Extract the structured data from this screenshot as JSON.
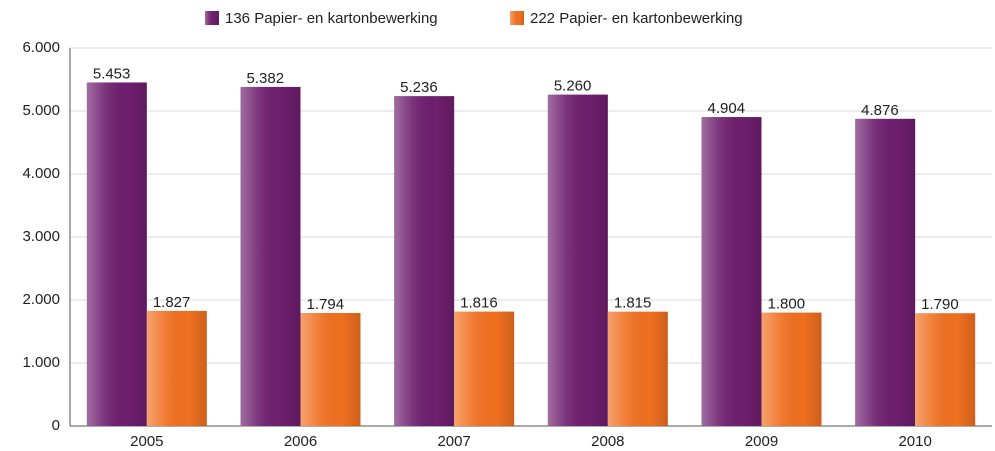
{
  "chart_data": {
    "type": "bar",
    "categories": [
      "2005",
      "2006",
      "2007",
      "2008",
      "2009",
      "2010"
    ],
    "series": [
      {
        "name": "136 Papier- en kartonbewerking",
        "color": "#6e1f6e",
        "values": [
          5453,
          5382,
          5236,
          5260,
          4904,
          4876
        ],
        "value_labels": [
          "5.453",
          "5.382",
          "5.236",
          "5.260",
          "4.904",
          "4.876"
        ]
      },
      {
        "name": "222 Papier- en kartonbewerking",
        "color": "#f07020",
        "values": [
          1827,
          1794,
          1816,
          1815,
          1800,
          1790
        ],
        "value_labels": [
          "1.827",
          "1.794",
          "1.816",
          "1.815",
          "1.800",
          "1.790"
        ]
      }
    ],
    "ylim": [
      0,
      6000
    ],
    "yticks": [
      0,
      {
        "value": 1000,
        "label": "1.000"
      },
      {
        "value": 2000,
        "label": "2.000"
      },
      {
        "value": 3000,
        "label": "3.000"
      },
      {
        "value": 4000,
        "label": "4.000"
      },
      {
        "value": 5000,
        "label": "5.000"
      },
      {
        "value": 6000,
        "label": "6.000"
      }
    ],
    "grid": true,
    "legend": "top"
  }
}
